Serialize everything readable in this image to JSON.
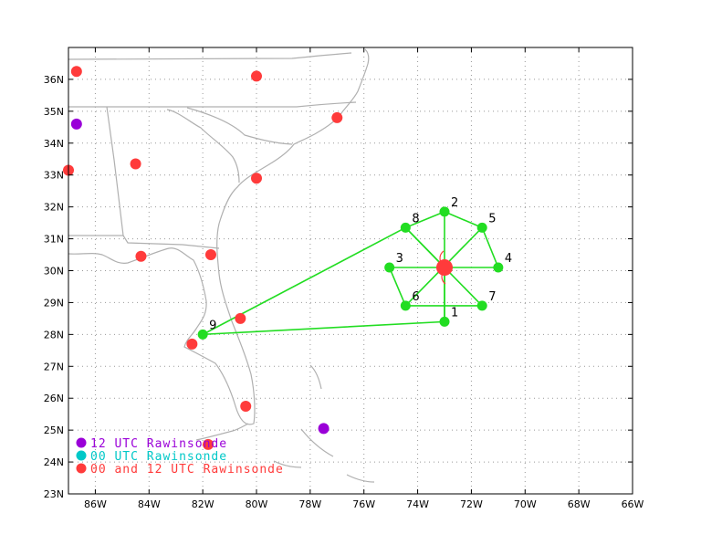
{
  "map": {
    "x_range": [
      -87,
      -66
    ],
    "y_range": [
      23,
      37
    ],
    "x_ticks": [
      {
        "v": -86,
        "label": "86W"
      },
      {
        "v": -84,
        "label": "84W"
      },
      {
        "v": -82,
        "label": "82W"
      },
      {
        "v": -80,
        "label": "80W"
      },
      {
        "v": -78,
        "label": "78W"
      },
      {
        "v": -76,
        "label": "76W"
      },
      {
        "v": -74,
        "label": "74W"
      },
      {
        "v": -72,
        "label": "72W"
      },
      {
        "v": -70,
        "label": "70W"
      },
      {
        "v": -68,
        "label": "68W"
      },
      {
        "v": -66,
        "label": "66W"
      }
    ],
    "y_ticks": [
      {
        "v": 23,
        "label": "23N"
      },
      {
        "v": 24,
        "label": "24N"
      },
      {
        "v": 25,
        "label": "25N"
      },
      {
        "v": 26,
        "label": "26N"
      },
      {
        "v": 27,
        "label": "27N"
      },
      {
        "v": 28,
        "label": "28N"
      },
      {
        "v": 29,
        "label": "29N"
      },
      {
        "v": 30,
        "label": "30N"
      },
      {
        "v": 31,
        "label": "31N"
      },
      {
        "v": 32,
        "label": "32N"
      },
      {
        "v": 33,
        "label": "33N"
      },
      {
        "v": 34,
        "label": "34N"
      },
      {
        "v": 35,
        "label": "35N"
      },
      {
        "v": 36,
        "label": "36N"
      }
    ],
    "colors": {
      "rawinsonde_12": "#9a00d8",
      "rawinsonde_00": "#00c8c8",
      "rawinsonde_both": "#ff3b3b",
      "flight": "#22dd22",
      "center": "#ff3b3b",
      "coast": "#b0b0b0",
      "grid": "#999999"
    },
    "center": {
      "lon": -73.0,
      "lat": 30.1
    },
    "flight_points": [
      {
        "label": "1",
        "lon": -73.0,
        "lat": 28.4
      },
      {
        "label": "2",
        "lon": -73.0,
        "lat": 31.85
      },
      {
        "label": "3",
        "lon": -75.05,
        "lat": 30.1
      },
      {
        "label": "4",
        "lon": -71.0,
        "lat": 30.1
      },
      {
        "label": "5",
        "lon": -71.6,
        "lat": 31.35
      },
      {
        "label": "6",
        "lon": -74.45,
        "lat": 28.9
      },
      {
        "label": "7",
        "lon": -71.6,
        "lat": 28.9
      },
      {
        "label": "8",
        "lon": -74.45,
        "lat": 31.35
      },
      {
        "label": "9",
        "lon": -82.0,
        "lat": 28.0
      }
    ],
    "flight_path": [
      "9",
      "8",
      "C",
      "1",
      "9"
    ],
    "flight_spokes": [
      [
        "2",
        "1"
      ],
      [
        "3",
        "4"
      ],
      [
        "5",
        "6"
      ],
      [
        "8",
        "7"
      ],
      [
        "2",
        "5"
      ],
      [
        "5",
        "4"
      ],
      [
        "6",
        "7"
      ],
      [
        "3",
        "6"
      ],
      [
        "2",
        "8"
      ]
    ],
    "rawinsondes": [
      {
        "type": "both",
        "lon": -86.7,
        "lat": 36.25
      },
      {
        "type": "both",
        "lon": -80.0,
        "lat": 36.1
      },
      {
        "type": "12",
        "lon": -86.7,
        "lat": 34.6
      },
      {
        "type": "both",
        "lon": -77.0,
        "lat": 34.8
      },
      {
        "type": "both",
        "lon": -84.5,
        "lat": 33.35
      },
      {
        "type": "both",
        "lon": -87.0,
        "lat": 33.15
      },
      {
        "type": "both",
        "lon": -80.0,
        "lat": 32.9
      },
      {
        "type": "both",
        "lon": -84.3,
        "lat": 30.45
      },
      {
        "type": "both",
        "lon": -81.7,
        "lat": 30.5
      },
      {
        "type": "both",
        "lon": -80.6,
        "lat": 28.5
      },
      {
        "type": "both",
        "lon": -82.4,
        "lat": 27.7
      },
      {
        "type": "both",
        "lon": -80.4,
        "lat": 25.75
      },
      {
        "type": "12",
        "lon": -77.5,
        "lat": 25.05
      },
      {
        "type": "both",
        "lon": -81.8,
        "lat": 24.55
      }
    ]
  },
  "legend": {
    "items": [
      {
        "type": "12",
        "label": "12 UTC Rawinsonde"
      },
      {
        "type": "00",
        "label": "00 UTC Rawinsonde"
      },
      {
        "type": "both",
        "label": "00 and 12 UTC Rawinsonde"
      }
    ]
  }
}
